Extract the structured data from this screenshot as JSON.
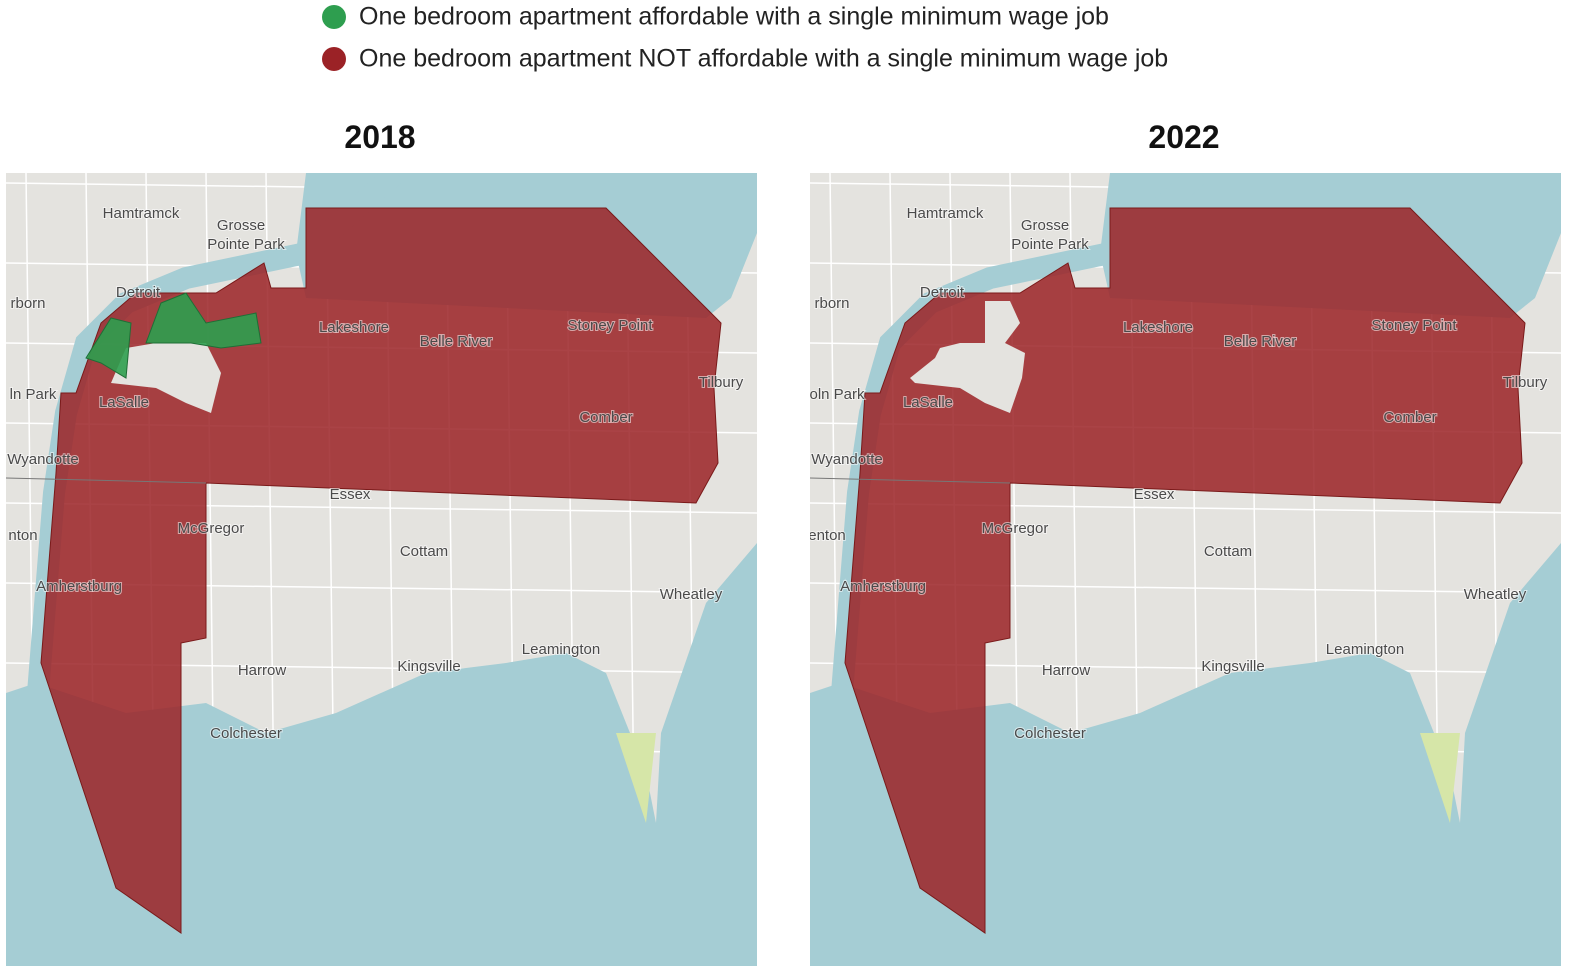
{
  "legend": {
    "items": [
      {
        "label": "One bedroom apartment affordable with a single minimum wage job",
        "color": "#2e9e4f"
      },
      {
        "label": "One bedroom apartment NOT affordable with a single minimum wage job",
        "color": "#9b2226"
      }
    ]
  },
  "maps": [
    {
      "title": "2018",
      "places": [
        "Hamtramck",
        "Grosse",
        "Pointe Park",
        "Detroit",
        "rborn",
        "Lakeshore",
        "Belle River",
        "Stoney Point",
        "Tilbury",
        "ln Park",
        "LaSalle",
        "Comber",
        "Wyandotte",
        "Essex",
        "McGregor",
        "Cottam",
        "nton",
        "Amherstburg",
        "Wheatley",
        "Leamington",
        "Harrow",
        "Kingsville",
        "Colchester"
      ]
    },
    {
      "title": "2022",
      "places": [
        "Hamtramck",
        "Grosse",
        "Pointe Park",
        "Detroit",
        "rborn",
        "Lakeshore",
        "Belle River",
        "Stoney Point",
        "Tilbury",
        "oln Park",
        "LaSalle",
        "Comber",
        "Wyandotte",
        "Essex",
        "McGregor",
        "Cottam",
        "enton",
        "Amherstburg",
        "Wheatley",
        "Leamington",
        "Harrow",
        "Kingsville",
        "Colchester"
      ]
    }
  ]
}
